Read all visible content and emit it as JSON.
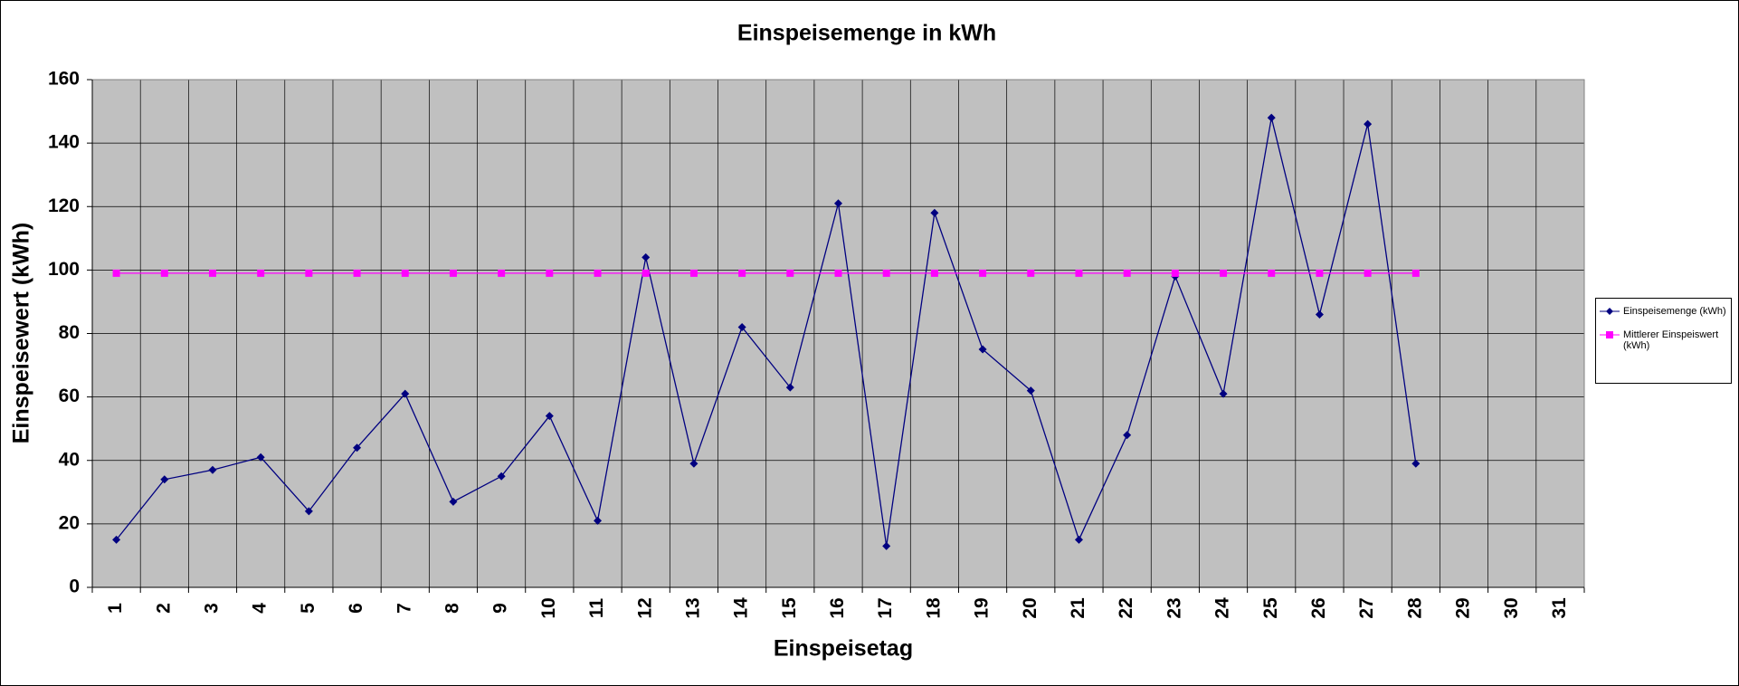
{
  "chart_data": {
    "type": "line",
    "title": "Einspeisemenge in kWh",
    "x_label": "Einspeisetag",
    "y_label": "Einspeisewert  (kWh)",
    "categories": [
      1,
      2,
      3,
      4,
      5,
      6,
      7,
      8,
      9,
      10,
      11,
      12,
      13,
      14,
      15,
      16,
      17,
      18,
      19,
      20,
      21,
      22,
      23,
      24,
      25,
      26,
      27,
      28,
      29,
      30,
      31
    ],
    "series": [
      {
        "name": "Einspeisemenge (kWh)",
        "color": "#000080",
        "marker": "diamond",
        "values": [
          15,
          34,
          37,
          41,
          24,
          44,
          61,
          27,
          35,
          54,
          21,
          104,
          39,
          82,
          63,
          121,
          13,
          118,
          75,
          62,
          15,
          48,
          98,
          61,
          148,
          86,
          146,
          39,
          null,
          null,
          null
        ]
      },
      {
        "name": "Mittlerer Einspeiswert (kWh)",
        "color": "#ff00ff",
        "marker": "square",
        "values": [
          99,
          99,
          99,
          99,
          99,
          99,
          99,
          99,
          99,
          99,
          99,
          99,
          99,
          99,
          99,
          99,
          99,
          99,
          99,
          99,
          99,
          99,
          99,
          99,
          99,
          99,
          99,
          99,
          null,
          null,
          null
        ]
      }
    ],
    "ylim": [
      0,
      160
    ],
    "yticks": [
      0,
      20,
      40,
      60,
      80,
      100,
      120,
      140,
      160
    ],
    "grid": true,
    "legend": "right"
  }
}
